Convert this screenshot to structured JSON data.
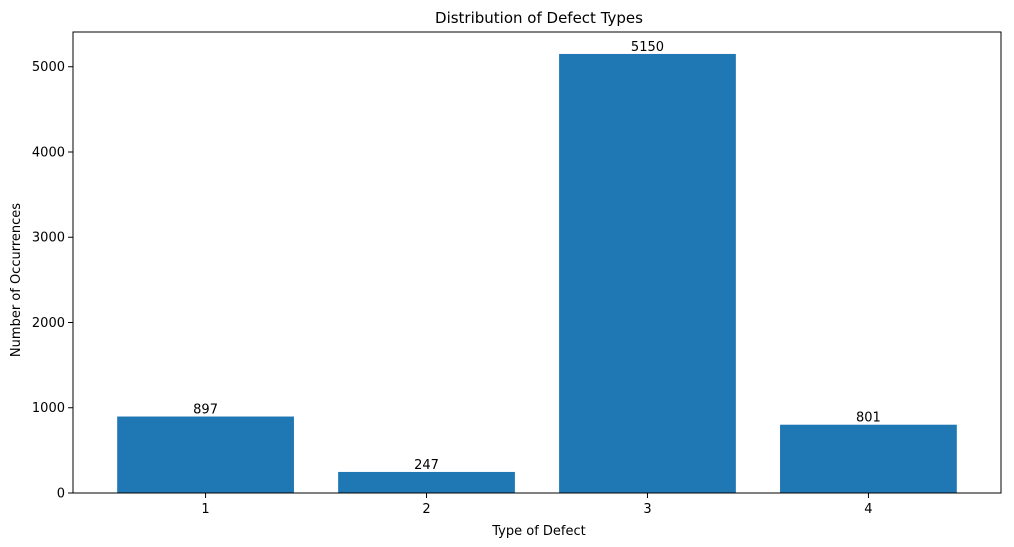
{
  "chart_data": {
    "type": "bar",
    "title": "Distribution of Defect Types",
    "xlabel": "Type of Defect",
    "ylabel": "Number of Occurrences",
    "categories": [
      "1",
      "2",
      "3",
      "4"
    ],
    "values": [
      897,
      247,
      5150,
      801
    ],
    "data_labels": [
      "897",
      "247",
      "5150",
      "801"
    ],
    "ylim": [
      0,
      5407.5
    ],
    "yticks": [
      0,
      1000,
      2000,
      3000,
      4000,
      5000
    ],
    "ytick_labels": [
      "0",
      "1000",
      "2000",
      "3000",
      "4000",
      "5000"
    ],
    "grid": false,
    "legend": "none",
    "colors": {
      "bar": "#1f77b4",
      "axes": "#000000",
      "background": "#ffffff"
    }
  }
}
